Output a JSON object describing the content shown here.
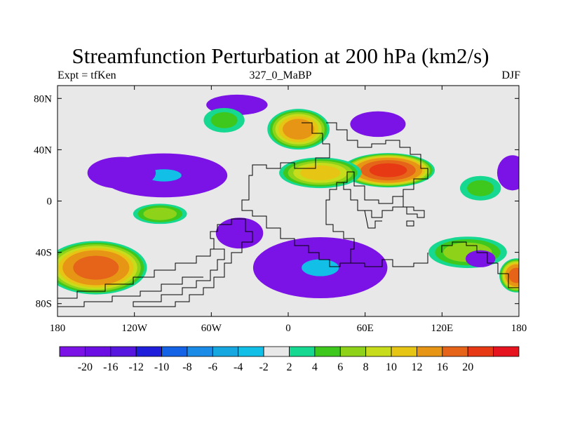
{
  "figure": {
    "title": "Streamfunction Perturbation at 200 hPa (km2/s)",
    "left_label": "Expt = tfKen",
    "center_label": "327_0_MaBP",
    "right_label": "DJF"
  },
  "map": {
    "projection": "cylindrical-equidistant",
    "background_color": "#e8e8e8",
    "lon_range": [
      -180,
      180
    ],
    "lat_range": [
      -90,
      90
    ],
    "lon_ticks": [
      {
        "value": -180,
        "label": "180"
      },
      {
        "value": -120,
        "label": "120W"
      },
      {
        "value": -60,
        "label": "60W"
      },
      {
        "value": 0,
        "label": "0"
      },
      {
        "value": 60,
        "label": "60E"
      },
      {
        "value": 120,
        "label": "120E"
      },
      {
        "value": 180,
        "label": "180"
      }
    ],
    "lat_ticks": [
      {
        "value": 80,
        "label": "80N"
      },
      {
        "value": 40,
        "label": "40N"
      },
      {
        "value": 0,
        "label": "0"
      },
      {
        "value": -40,
        "label": "40S"
      },
      {
        "value": -80,
        "label": "80S"
      }
    ],
    "anomalies": [
      {
        "name": "n-pacific-low",
        "lon": -97,
        "lat": 20,
        "rlon": 52,
        "rlat": 18,
        "value": -20
      },
      {
        "name": "n-pacific-low-ext",
        "lon": -130,
        "lat": 22,
        "rlon": 30,
        "rlat": 14,
        "value": -8
      },
      {
        "name": "n-atlantic-high",
        "lon": 8,
        "lat": 56,
        "rlon": 26,
        "rlat": 17,
        "value": 14
      },
      {
        "name": "asia-high",
        "lon": 78,
        "lat": 24,
        "rlon": 38,
        "rlat": 14,
        "value": 22
      },
      {
        "name": "asia-high-west",
        "lon": 25,
        "lat": 22,
        "rlon": 35,
        "rlat": 13,
        "value": 11
      },
      {
        "name": "eurasia-low",
        "lon": 70,
        "lat": 60,
        "rlon": 26,
        "rlat": 12,
        "value": -5
      },
      {
        "name": "arctic-low",
        "lon": -40,
        "lat": 75,
        "rlon": 30,
        "rlat": 10,
        "value": -4
      },
      {
        "name": "n-america-high",
        "lon": -50,
        "lat": 63,
        "rlon": 20,
        "rlat": 12,
        "value": 4
      },
      {
        "name": "tropical-pacific-high",
        "lon": -100,
        "lat": -10,
        "rlon": 24,
        "rlat": 9,
        "value": 7
      },
      {
        "name": "s-atlantic-low",
        "lon": -38,
        "lat": -25,
        "rlon": 20,
        "rlat": 13,
        "value": -12
      },
      {
        "name": "s-pacific-high",
        "lon": -150,
        "lat": -52,
        "rlon": 42,
        "rlat": 22,
        "value": 18
      },
      {
        "name": "southern-low",
        "lon": 25,
        "lat": -52,
        "rlon": 55,
        "rlat": 25,
        "value": -20
      },
      {
        "name": "s-indian-high",
        "lon": 140,
        "lat": -40,
        "rlon": 35,
        "rlat": 14,
        "value": 7
      },
      {
        "name": "s-indian-low",
        "lon": 150,
        "lat": -45,
        "rlon": 14,
        "rlat": 8,
        "value": -5
      },
      {
        "name": "dateline-high",
        "lon": 178,
        "lat": -58,
        "rlon": 14,
        "rlat": 14,
        "value": 18
      },
      {
        "name": "n-pacific-east-low",
        "lon": 175,
        "lat": 22,
        "rlon": 14,
        "rlat": 16,
        "value": -6
      },
      {
        "name": "pacific-east-high",
        "lon": 150,
        "lat": 10,
        "rlon": 20,
        "rlat": 12,
        "value": 4
      }
    ]
  },
  "colorbar": {
    "colors": [
      "#7b13e6",
      "#6a0ee3",
      "#5616e0",
      "#1e1edb",
      "#1462e6",
      "#1a8be6",
      "#16a6e0",
      "#12bfe6",
      "#e8e8e8",
      "#16d891",
      "#3ec81e",
      "#8ed31a",
      "#c7dc1a",
      "#e6c514",
      "#e69614",
      "#e6641a",
      "#e63914",
      "#e6141e"
    ],
    "tick_labels": [
      "-20",
      "-16",
      "-12",
      "-10",
      "-8",
      "-6",
      "-4",
      "-2",
      "2",
      "4",
      "6",
      "8",
      "10",
      "12",
      "16",
      "20"
    ],
    "level_values": [
      -24,
      -20,
      -16,
      -12,
      -10,
      -8,
      -6,
      -4,
      -2,
      2,
      4,
      6,
      8,
      10,
      12,
      16,
      20
    ]
  }
}
